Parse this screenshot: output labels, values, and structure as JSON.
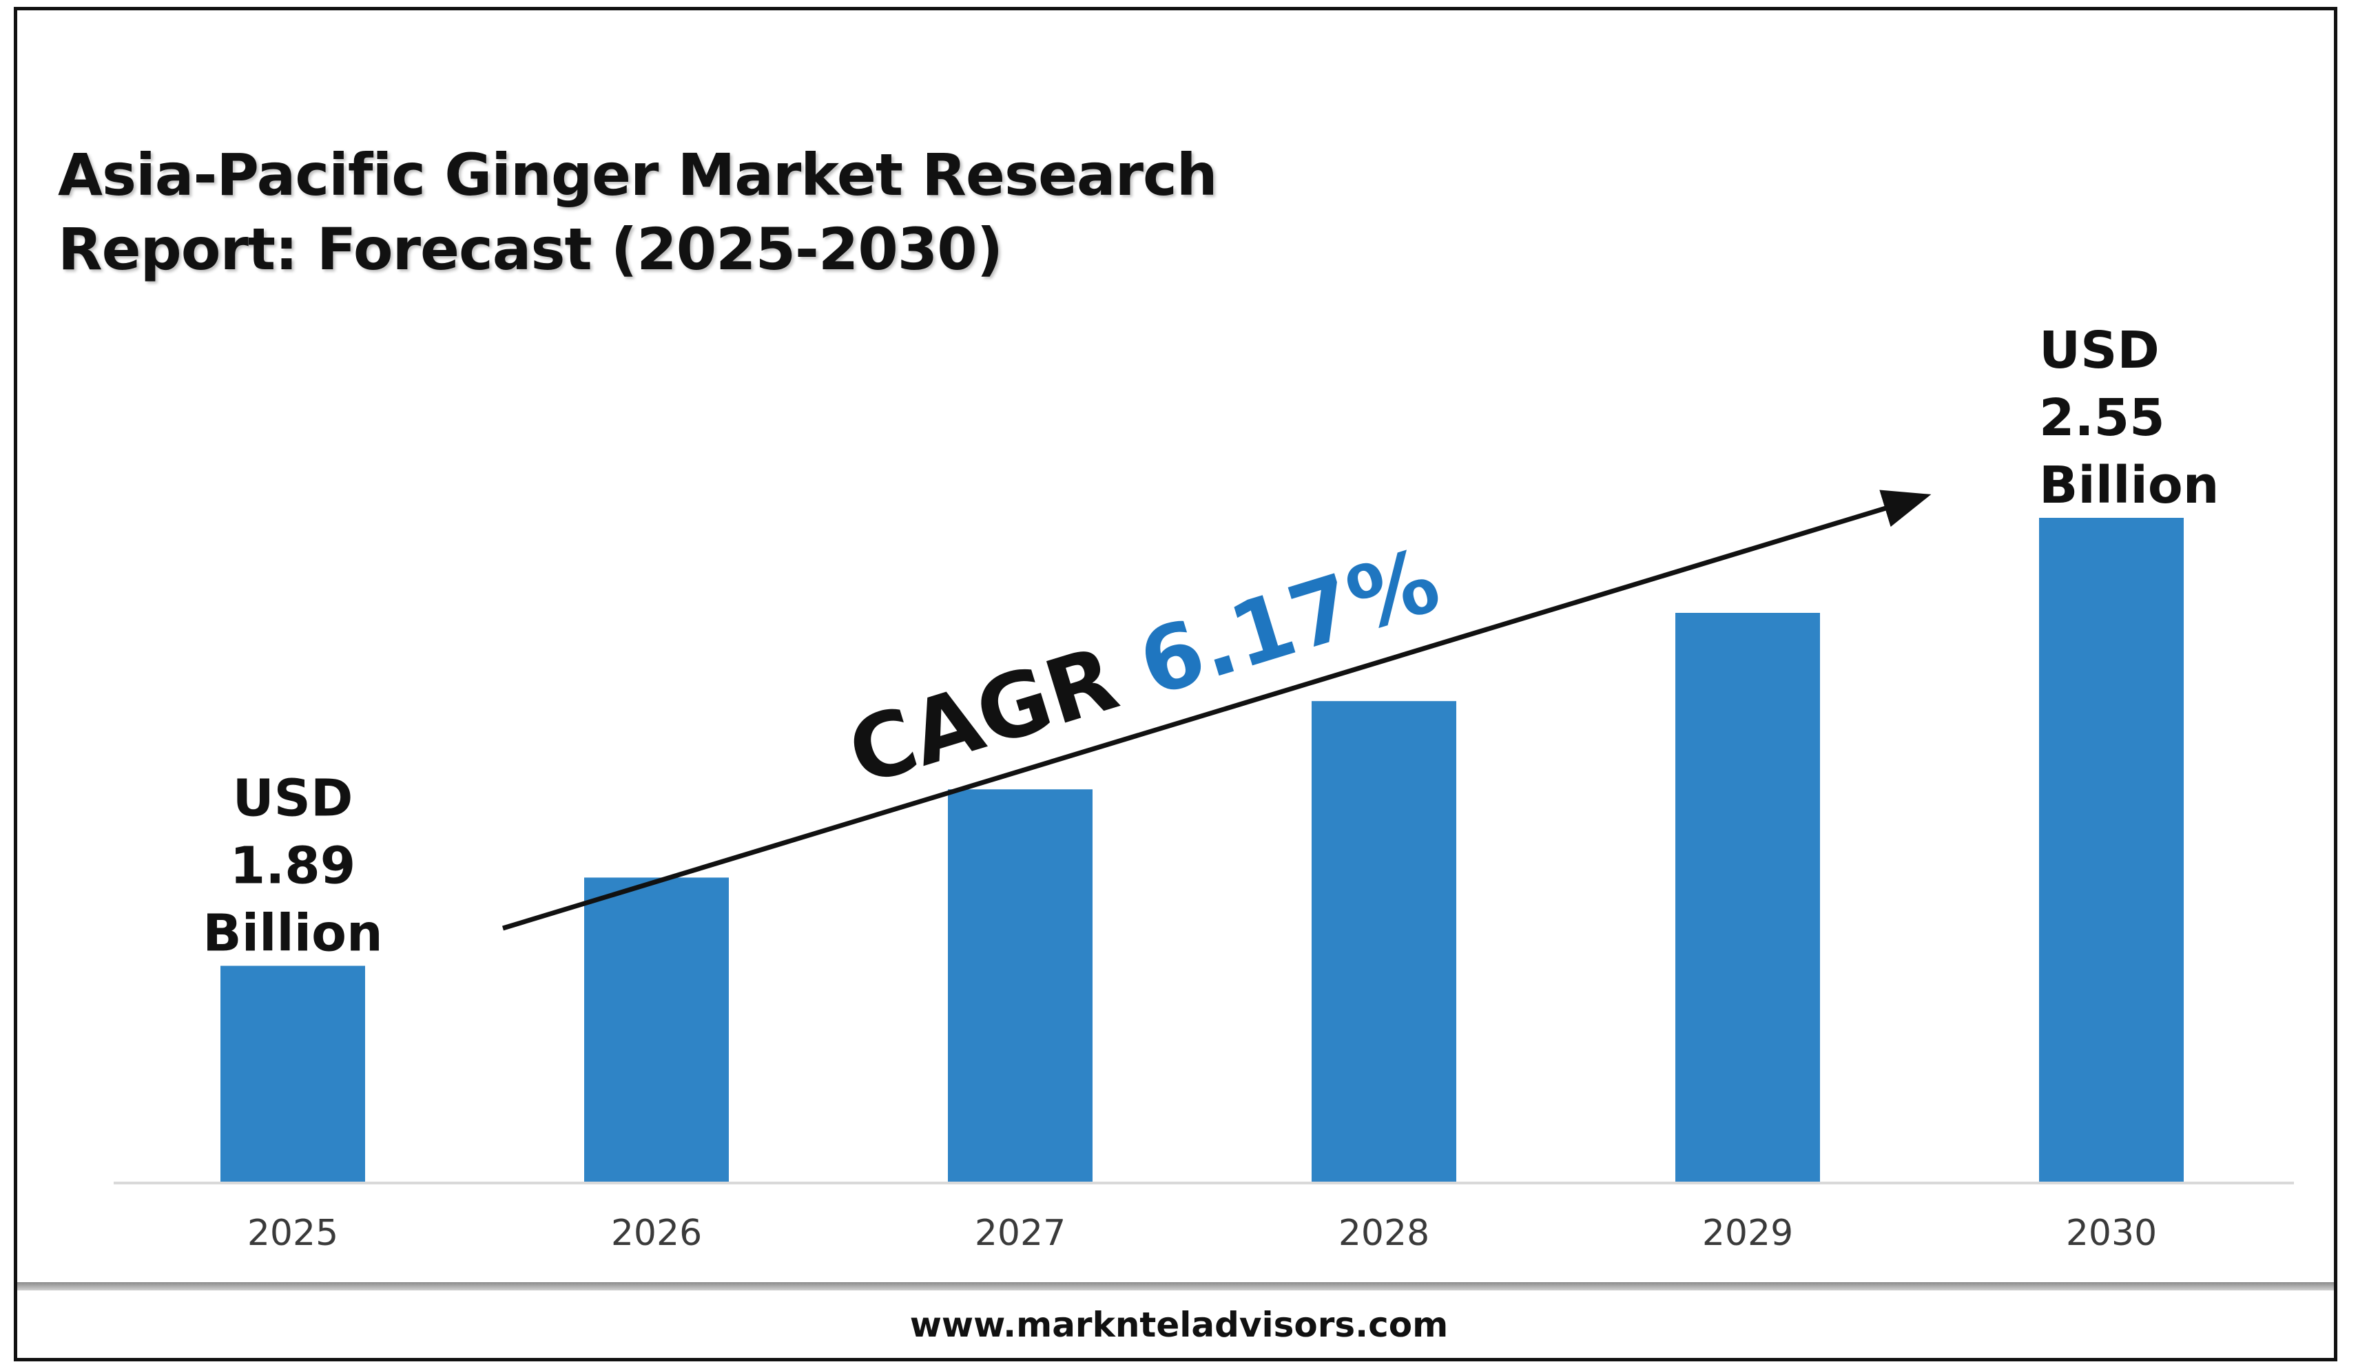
{
  "title_lines": [
    "Asia-Pacific Ginger Market Research",
    "Report: Forecast (2025-2030)"
  ],
  "cagr": {
    "prefix": "CAGR ",
    "value": "6.17%"
  },
  "footer": {
    "url": "www.marknteladvisors.com"
  },
  "colors": {
    "bar": "#2f84c6",
    "cagr_value": "#1f76c0",
    "text": "#111111"
  },
  "chart_data": {
    "type": "bar",
    "categories": [
      "2025",
      "2026",
      "2027",
      "2028",
      "2029",
      "2030"
    ],
    "values": [
      1.89,
      2.02,
      2.15,
      2.28,
      2.41,
      2.55
    ],
    "annotations": [
      {
        "category": "2025",
        "lines": [
          "USD",
          "1.89",
          "Billion"
        ]
      },
      {
        "category": "2030",
        "lines": [
          "USD",
          "2.55",
          "Billion"
        ]
      }
    ],
    "title": "Asia-Pacific Ginger Market Research Report: Forecast (2025-2030)",
    "xlabel": "",
    "ylabel": "",
    "grid": false,
    "legend": "none"
  }
}
